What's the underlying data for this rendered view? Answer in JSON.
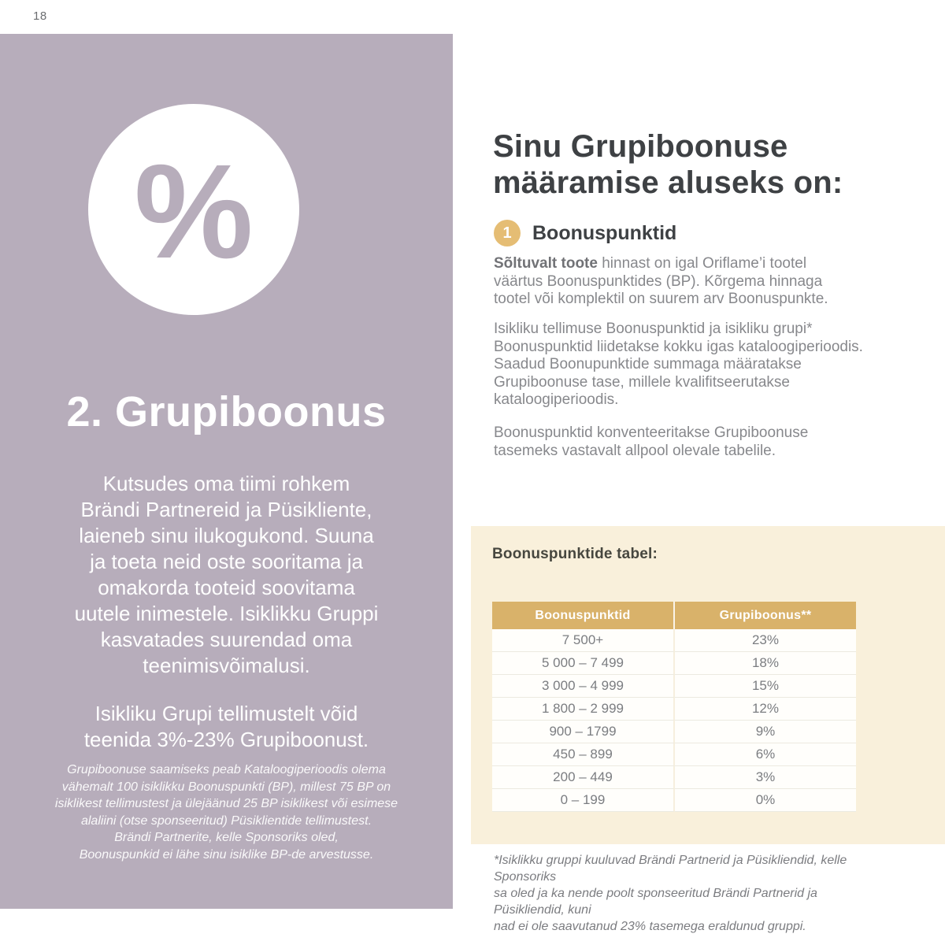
{
  "page": {
    "number": "18"
  },
  "left_panel": {
    "percent_symbol": "%",
    "title": "2. Grupiboonus",
    "paragraph1": "Kutsudes oma tiimi rohkem\nBrändi Partnereid ja Püsikliente,\nlaieneb sinu ilukogukond. Suuna\nja toeta neid oste sooritama ja\nomakorda tooteid soovitama\nuutele inimestele. Isiklikku Gruppi\nkasvatades suurendad oma\nteenimisvõimalusi.",
    "paragraph2": "Isikliku Grupi tellimustelt võid\nteenida 3%-23% Grupiboonust.",
    "footnote": "Grupiboonuse saamiseks peab Kataloogiperioodis olema\nvähemalt 100 isiklikku Boonuspunkti (BP), millest 75 BP on\nisiklikest tellimustest ja ülejäänud 25 BP isiklikest või esimese\nalaliini (otse sponseeritud) Püsiklientide tellimustest.\nBrändi Partnerite, kelle Sponsoriks oled,\nBoonuspunkid ei lähe sinu isiklike BP-de arvestusse."
  },
  "right_column": {
    "heading": "Sinu Grupiboonuse\nmääramise aluseks on:",
    "step": {
      "number": "1",
      "title": "Boonuspunktid"
    },
    "paragraph1_bold": "Sõltuvalt toote",
    "paragraph1_rest": " hinnast on igal Oriflame’i tootel\nväärtus Boonuspunktides (BP). Kõrgema hinnaga\ntootel või komplektil on suurem arv Boonuspunkte.",
    "paragraph2": "Isikliku tellimuse Boonuspunktid ja isikliku grupi*\nBoonuspunktid liidetakse kokku igas kataloogiperioodis.\nSaadud Boonupunktide summaga määratakse\nGrupiboonuse tase, millele kvalifitseerutakse\nkataloogiperioodis.",
    "paragraph3": "Boonuspunktid konventeeritakse Grupiboonuse\ntasemeks vastavalt allpool olevale tabelile.",
    "footnote": "*Isiklikku gruppi kuuluvad Brändi Partnerid ja Püsikliendid, kelle Sponsoriks\nsa oled ja ka nende poolt sponseeritud Brändi Partnerid ja Püsikliendid, kuni\nnad ei ole saavutanud 23% tasemega eraldunud gruppi."
  },
  "table_section": {
    "title": "Boonuspunktide tabel:",
    "columns": [
      "Boonuspunktid",
      "Grupiboonus**"
    ],
    "rows": [
      [
        "7 500+",
        "23%"
      ],
      [
        "5 000 – 7 499",
        "18%"
      ],
      [
        "3 000 – 4 999",
        "15%"
      ],
      [
        "1 800 – 2 999",
        "12%"
      ],
      [
        "900 – 1799",
        "9%"
      ],
      [
        "450 – 899",
        "6%"
      ],
      [
        "200 – 449",
        "3%"
      ],
      [
        "0 – 199",
        "0%"
      ]
    ]
  },
  "colors": {
    "panel_purple": "#b7adbb",
    "gold_accent": "#d9b26a",
    "gold_badge": "#e5bd74",
    "cream_background": "#f9f0db",
    "heading_dark": "#3e4144",
    "body_gray": "#87888c"
  }
}
